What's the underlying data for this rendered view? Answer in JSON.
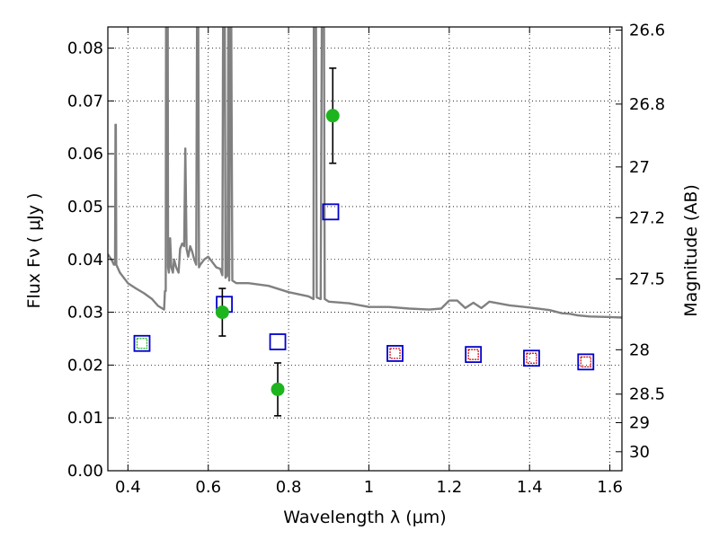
{
  "chart_data": {
    "type": "scatter",
    "xlabel": "Wavelength  λ (μm)",
    "ylabel": "Flux  Fν  ( μJy )",
    "ylabel_right": "Magnitude (AB)",
    "xlim": [
      0.35,
      1.63
    ],
    "ylim": [
      0.0,
      0.084
    ],
    "grid": true,
    "x_ticks": [
      0.4,
      0.6,
      0.8,
      1.0,
      1.2,
      1.4,
      1.6
    ],
    "x_tick_labels": [
      "0.4",
      "0.6",
      "0.8",
      "1",
      "1.2",
      "1.4",
      "1.6"
    ],
    "y_ticks": [
      0.0,
      0.01,
      0.02,
      0.03,
      0.04,
      0.05,
      0.06,
      0.07,
      0.08
    ],
    "y_tick_labels": [
      "0.00",
      "0.01",
      "0.02",
      "0.03",
      "0.04",
      "0.05",
      "0.06",
      "0.07",
      "0.08"
    ],
    "right_ticks": [
      {
        "label": "26.6",
        "flux": 0.0834
      },
      {
        "label": "26.8",
        "flux": 0.0694
      },
      {
        "label": "27",
        "flux": 0.0575
      },
      {
        "label": "27.2",
        "flux": 0.0479
      },
      {
        "label": "27.5",
        "flux": 0.0363
      },
      {
        "label": "28",
        "flux": 0.0229
      },
      {
        "label": "28.5",
        "flux": 0.0145
      },
      {
        "label": "29",
        "flux": 0.0091
      },
      {
        "label": "30",
        "flux": 0.0036
      }
    ],
    "series": [
      {
        "kind": "sed-model-line",
        "color": "#808080",
        "points": [
          [
            0.35,
            0.041
          ],
          [
            0.36,
            0.0398
          ],
          [
            0.365,
            0.039
          ],
          [
            0.368,
            0.039
          ],
          [
            0.369,
            0.0655
          ],
          [
            0.37,
            0.0655
          ],
          [
            0.371,
            0.039
          ],
          [
            0.38,
            0.0375
          ],
          [
            0.4,
            0.0355
          ],
          [
            0.42,
            0.0345
          ],
          [
            0.44,
            0.0336
          ],
          [
            0.46,
            0.0325
          ],
          [
            0.475,
            0.0312
          ],
          [
            0.49,
            0.0305
          ],
          [
            0.492,
            0.034
          ],
          [
            0.494,
            0.034
          ],
          [
            0.495,
            0.09
          ],
          [
            0.499,
            0.09
          ],
          [
            0.5,
            0.0385
          ],
          [
            0.502,
            0.0375
          ],
          [
            0.505,
            0.044
          ],
          [
            0.508,
            0.0385
          ],
          [
            0.512,
            0.0375
          ],
          [
            0.515,
            0.04
          ],
          [
            0.52,
            0.0385
          ],
          [
            0.526,
            0.0375
          ],
          [
            0.53,
            0.042
          ],
          [
            0.535,
            0.043
          ],
          [
            0.54,
            0.0425
          ],
          [
            0.543,
            0.061
          ],
          [
            0.546,
            0.042
          ],
          [
            0.55,
            0.0405
          ],
          [
            0.555,
            0.0425
          ],
          [
            0.56,
            0.0415
          ],
          [
            0.565,
            0.04
          ],
          [
            0.57,
            0.039
          ],
          [
            0.572,
            0.084
          ],
          [
            0.575,
            0.09
          ],
          [
            0.577,
            0.0385
          ],
          [
            0.58,
            0.039
          ],
          [
            0.59,
            0.04
          ],
          [
            0.6,
            0.0405
          ],
          [
            0.61,
            0.0395
          ],
          [
            0.62,
            0.0385
          ],
          [
            0.63,
            0.0382
          ],
          [
            0.635,
            0.037
          ],
          [
            0.637,
            0.09
          ],
          [
            0.641,
            0.09
          ],
          [
            0.643,
            0.0365
          ],
          [
            0.648,
            0.037
          ],
          [
            0.65,
            0.09
          ],
          [
            0.652,
            0.036
          ],
          [
            0.655,
            0.09
          ],
          [
            0.657,
            0.09
          ],
          [
            0.66,
            0.036
          ],
          [
            0.67,
            0.0355
          ],
          [
            0.7,
            0.0355
          ],
          [
            0.75,
            0.035
          ],
          [
            0.8,
            0.0338
          ],
          [
            0.85,
            0.033
          ],
          [
            0.862,
            0.0325
          ],
          [
            0.863,
            0.09
          ],
          [
            0.868,
            0.09
          ],
          [
            0.87,
            0.0328
          ],
          [
            0.88,
            0.0325
          ],
          [
            0.883,
            0.09
          ],
          [
            0.888,
            0.09
          ],
          [
            0.89,
            0.0325
          ],
          [
            0.9,
            0.032
          ],
          [
            0.95,
            0.0317
          ],
          [
            1.0,
            0.031
          ],
          [
            1.05,
            0.031
          ],
          [
            1.1,
            0.0307
          ],
          [
            1.15,
            0.0305
          ],
          [
            1.18,
            0.0307
          ],
          [
            1.2,
            0.0322
          ],
          [
            1.22,
            0.0322
          ],
          [
            1.24,
            0.0308
          ],
          [
            1.26,
            0.0318
          ],
          [
            1.28,
            0.0308
          ],
          [
            1.3,
            0.032
          ],
          [
            1.35,
            0.0313
          ],
          [
            1.4,
            0.0309
          ],
          [
            1.45,
            0.0304
          ],
          [
            1.48,
            0.0298
          ],
          [
            1.5,
            0.0297
          ],
          [
            1.52,
            0.0294
          ],
          [
            1.55,
            0.0292
          ],
          [
            1.6,
            0.0291
          ],
          [
            1.63,
            0.029
          ]
        ]
      },
      {
        "kind": "observed-flux",
        "marker": "filled-circle",
        "color": "#1eb41e",
        "points": [
          {
            "x": 0.635,
            "y": 0.03,
            "yerr": 0.0045
          },
          {
            "x": 0.773,
            "y": 0.0154,
            "yerr": 0.005
          },
          {
            "x": 0.91,
            "y": 0.0672,
            "yerr": 0.009
          }
        ]
      },
      {
        "kind": "model-photometry",
        "marker": "open-square",
        "color": "#0000cc",
        "points": [
          {
            "x": 0.435,
            "y": 0.0241
          },
          {
            "x": 0.64,
            "y": 0.0315
          },
          {
            "x": 0.773,
            "y": 0.0244
          },
          {
            "x": 0.905,
            "y": 0.049
          },
          {
            "x": 1.065,
            "y": 0.0222
          },
          {
            "x": 1.26,
            "y": 0.022
          },
          {
            "x": 1.405,
            "y": 0.0213
          },
          {
            "x": 1.54,
            "y": 0.0206
          }
        ]
      },
      {
        "kind": "inner-marker",
        "marker": "small-open-square",
        "colors": [
          "#1eb41e",
          "#cc0000",
          "#cc0000",
          "#cc0000",
          "#cc0000"
        ],
        "points": [
          {
            "x": 0.435,
            "y": 0.0241
          },
          {
            "x": 1.065,
            "y": 0.0222
          },
          {
            "x": 1.26,
            "y": 0.022
          },
          {
            "x": 1.405,
            "y": 0.0213
          },
          {
            "x": 1.54,
            "y": 0.0206
          }
        ]
      }
    ]
  }
}
